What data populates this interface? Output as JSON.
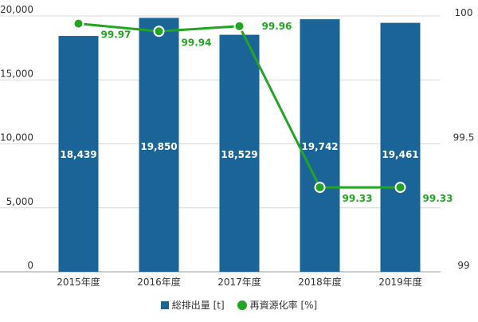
{
  "chart_data": {
    "type": "bar",
    "categories": [
      "2015年度",
      "2016年度",
      "2017年度",
      "2018年度",
      "2019年度"
    ],
    "series": [
      {
        "name": "総排出量 [t]",
        "type": "bar",
        "axis": "left",
        "color": "#1b6497",
        "values": [
          18439,
          19850,
          18529,
          19742,
          19461
        ],
        "labels": [
          "18,439",
          "19,850",
          "18,529",
          "19,742",
          "19,461"
        ]
      },
      {
        "name": "再資源化率 [%]",
        "type": "line",
        "axis": "right",
        "color": "#22a522",
        "values": [
          99.97,
          99.94,
          99.96,
          99.33,
          99.33
        ],
        "labels": [
          "99.97",
          "99.94",
          "99.96",
          "99.33",
          "99.33"
        ]
      }
    ],
    "y_left": {
      "ylim": [
        0,
        20000
      ],
      "ticks": [
        "0",
        "5,000",
        "10,000",
        "15,000",
        "20,000"
      ],
      "tick_values": [
        0,
        5000,
        10000,
        15000,
        20000
      ]
    },
    "y_right": {
      "ylim": [
        99,
        100
      ],
      "ticks": [
        "99",
        "99.5",
        "100"
      ],
      "tick_values": [
        99,
        99.5,
        100
      ]
    },
    "grid": true,
    "legend": "bottom-center"
  }
}
